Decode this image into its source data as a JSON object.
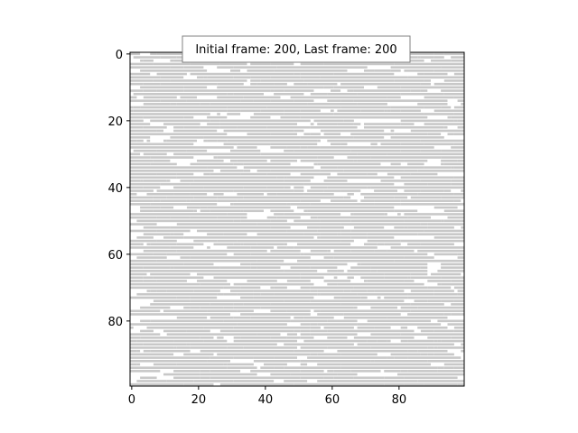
{
  "chart_data": {
    "type": "heatmap",
    "title": "",
    "annotation": "Initial frame: 200, Last frame: 200",
    "xlabel": "",
    "ylabel": "",
    "grid": false,
    "x_range": [
      -0.5,
      99.5
    ],
    "y_range": [
      -0.5,
      99.5
    ],
    "y_inverted": true,
    "x_ticks": [
      0,
      20,
      40,
      60,
      80
    ],
    "y_ticks": [
      0,
      20,
      40,
      60,
      80
    ],
    "grid_size": [
      100,
      100
    ],
    "colors": {
      "filled": "#c8c8c8",
      "empty": "#ffffff"
    },
    "description_of_values": "binary occupancy grid rendered as gray (filled) vs white (empty) cells; mostly horizontal runs across rows"
  }
}
